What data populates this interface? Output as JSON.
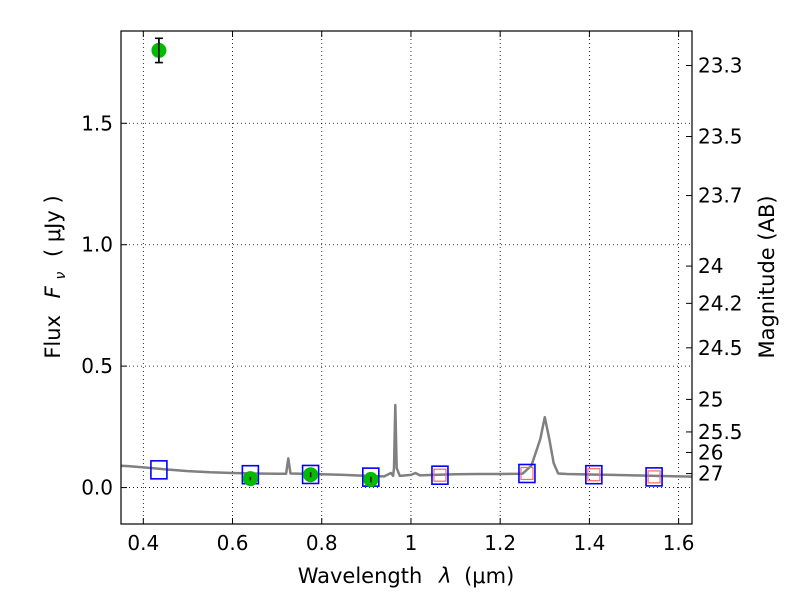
{
  "chart_data": {
    "type": "scatter",
    "xlabel_text": "Wavelength",
    "xlabel_lambda": "λ",
    "xlabel_unit": "(μm)",
    "ylabel_text": "Flux",
    "ylabel_symbol": "F",
    "ylabel_sub": "ν",
    "ylabel_unit": "( μJy )",
    "y2label": "Magnitude (AB)",
    "xlim": [
      0.35,
      1.63
    ],
    "ylim": [
      -0.15,
      1.88
    ],
    "grid": true,
    "x_ticks": [
      0.4,
      0.6,
      0.8,
      1.0,
      1.2,
      1.4,
      1.6
    ],
    "x_tick_labels": [
      "0.4",
      "0.6",
      "0.8",
      "1",
      "1.2",
      "1.4",
      "1.6"
    ],
    "y_ticks": [
      0.0,
      0.5,
      1.0,
      1.5
    ],
    "y_tick_labels": [
      "0.0",
      "0.5",
      "1.0",
      "1.5"
    ],
    "y2_ticks": [
      {
        "label": "23.3",
        "mag": 23.3
      },
      {
        "label": "23.5",
        "mag": 23.5
      },
      {
        "label": "23.7",
        "mag": 23.7
      },
      {
        "label": "24",
        "mag": 24.0
      },
      {
        "label": "24.2",
        "mag": 24.2
      },
      {
        "label": "24.5",
        "mag": 24.5
      },
      {
        "label": "25",
        "mag": 25.0
      },
      {
        "label": "25.5",
        "mag": 25.5
      },
      {
        "label": "26",
        "mag": 26.0
      },
      {
        "label": "27",
        "mag": 27.0
      }
    ],
    "colors": {
      "spectrum": "#808080",
      "observed": "#00bb00",
      "model": "#0000ff",
      "upper_limit": "#ff6666",
      "errorbar": "#000000",
      "grid": "#000000"
    },
    "series": [
      {
        "kind": "spectrum",
        "points": [
          [
            0.35,
            0.09
          ],
          [
            0.37,
            0.088
          ],
          [
            0.4,
            0.083
          ],
          [
            0.42,
            0.08
          ],
          [
            0.45,
            0.075
          ],
          [
            0.5,
            0.068
          ],
          [
            0.55,
            0.063
          ],
          [
            0.6,
            0.06
          ],
          [
            0.65,
            0.058
          ],
          [
            0.7,
            0.057
          ],
          [
            0.72,
            0.057
          ],
          [
            0.725,
            0.12
          ],
          [
            0.73,
            0.058
          ],
          [
            0.8,
            0.055
          ],
          [
            0.85,
            0.052
          ],
          [
            0.9,
            0.048
          ],
          [
            0.94,
            0.046
          ],
          [
            0.955,
            0.06
          ],
          [
            0.96,
            0.048
          ],
          [
            0.962,
            0.08
          ],
          [
            0.965,
            0.34
          ],
          [
            0.968,
            0.08
          ],
          [
            0.975,
            0.048
          ],
          [
            1.0,
            0.052
          ],
          [
            1.01,
            0.06
          ],
          [
            1.02,
            0.05
          ],
          [
            1.05,
            0.052
          ],
          [
            1.1,
            0.055
          ],
          [
            1.15,
            0.056
          ],
          [
            1.2,
            0.056
          ],
          [
            1.25,
            0.057
          ],
          [
            1.27,
            0.09
          ],
          [
            1.29,
            0.2
          ],
          [
            1.3,
            0.29
          ],
          [
            1.31,
            0.2
          ],
          [
            1.32,
            0.1
          ],
          [
            1.33,
            0.058
          ],
          [
            1.35,
            0.056
          ],
          [
            1.4,
            0.054
          ],
          [
            1.45,
            0.052
          ],
          [
            1.5,
            0.05
          ],
          [
            1.55,
            0.048
          ],
          [
            1.6,
            0.046
          ],
          [
            1.63,
            0.045
          ]
        ]
      },
      {
        "kind": "model",
        "points": [
          [
            0.435,
            0.073
          ],
          [
            0.64,
            0.053
          ],
          [
            0.775,
            0.054
          ],
          [
            0.91,
            0.043
          ],
          [
            1.065,
            0.051
          ],
          [
            1.26,
            0.058
          ],
          [
            1.41,
            0.053
          ],
          [
            1.545,
            0.044
          ]
        ]
      },
      {
        "kind": "observed",
        "points": [
          {
            "x": 0.435,
            "y": 1.8,
            "err": 0.05
          },
          {
            "x": 0.64,
            "y": 0.037,
            "err": 0.007
          },
          {
            "x": 0.775,
            "y": 0.053,
            "err": 0.01
          },
          {
            "x": 0.91,
            "y": 0.033,
            "err": 0.012
          }
        ]
      },
      {
        "kind": "upper_limit",
        "points": [
          [
            1.065,
            0.051
          ],
          [
            1.26,
            0.058
          ],
          [
            1.41,
            0.053
          ],
          [
            1.545,
            0.044
          ]
        ]
      }
    ]
  }
}
